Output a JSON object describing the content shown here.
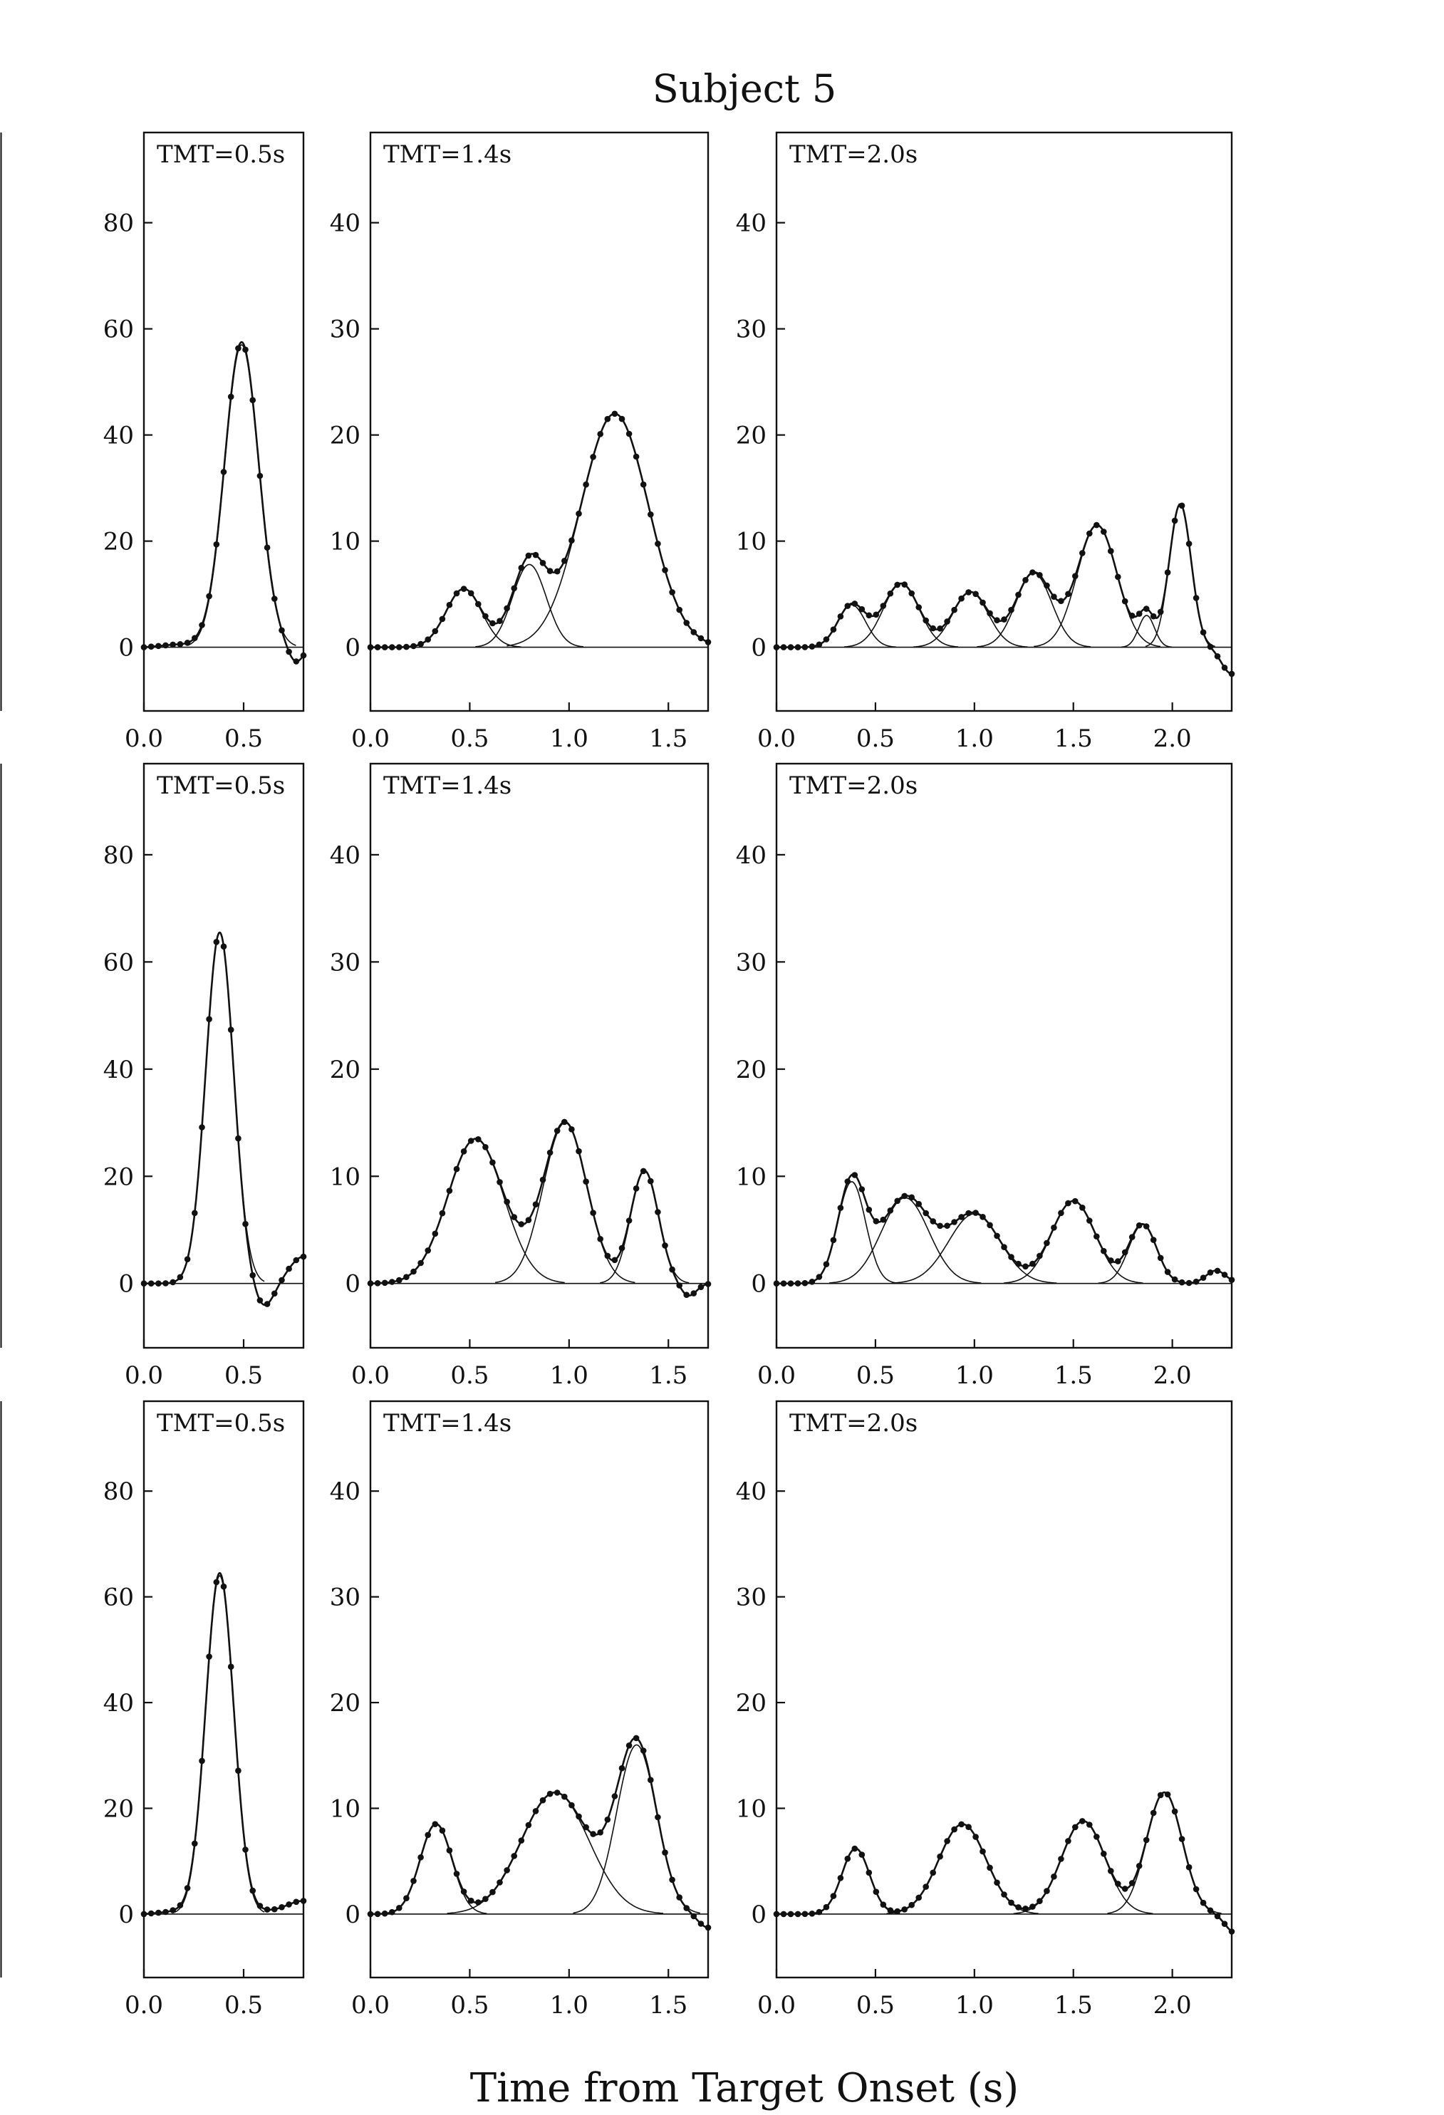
{
  "figure": {
    "title": "Subject 5",
    "xlabel": "Time from Target Onset (s)"
  },
  "chart_data": [
    {
      "type": "line",
      "title": "TMT=0.5s",
      "row": 1,
      "col": 1,
      "xlim": [
        0,
        0.8
      ],
      "ylim": [
        -12,
        97
      ],
      "xticks": [
        0,
        0.5
      ],
      "xtick_labels": [
        "0.0",
        "0.5"
      ],
      "yticks": [
        0,
        20,
        40,
        60,
        80
      ],
      "ytick_labels": [
        "0",
        "20",
        "40",
        "60",
        "80"
      ],
      "baseline_offset": 0.5,
      "components": [
        {
          "center": 0.49,
          "amplitude": 57,
          "width": 0.085
        }
      ],
      "tail": [
        {
          "center": 0.76,
          "amplitude": -3.5,
          "width": 0.04
        }
      ]
    },
    {
      "type": "line",
      "title": "TMT=1.4s",
      "row": 1,
      "col": 2,
      "xlim": [
        0,
        1.7
      ],
      "ylim": [
        -6,
        48.5
      ],
      "xticks": [
        0,
        0.5,
        1,
        1.5
      ],
      "xtick_labels": [
        "0.0",
        "0.5",
        "1.0",
        "1.5"
      ],
      "yticks": [
        0,
        10,
        20,
        30,
        40
      ],
      "ytick_labels": [
        "0",
        "10",
        "20",
        "30",
        "40"
      ],
      "baseline_offset": 0,
      "components": [
        {
          "center": 0.47,
          "amplitude": 5.5,
          "width": 0.09
        },
        {
          "center": 0.8,
          "amplitude": 7.8,
          "width": 0.085
        },
        {
          "center": 1.23,
          "amplitude": 22,
          "width": 0.17
        }
      ],
      "tail": []
    },
    {
      "type": "line",
      "title": "TMT=2.0s",
      "row": 1,
      "col": 3,
      "xlim": [
        0,
        2.3
      ],
      "ylim": [
        -6,
        48.5
      ],
      "xticks": [
        0,
        0.5,
        1,
        1.5,
        2
      ],
      "xtick_labels": [
        "0.0",
        "0.5",
        "1.0",
        "1.5",
        "2.0"
      ],
      "yticks": [
        0,
        10,
        20,
        30,
        40
      ],
      "ytick_labels": [
        "0",
        "10",
        "20",
        "30",
        "40"
      ],
      "baseline_offset": 0,
      "components": [
        {
          "center": 0.38,
          "amplitude": 4,
          "width": 0.07
        },
        {
          "center": 0.63,
          "amplitude": 6,
          "width": 0.09
        },
        {
          "center": 0.98,
          "amplitude": 5.2,
          "width": 0.09
        },
        {
          "center": 1.3,
          "amplitude": 7,
          "width": 0.09
        },
        {
          "center": 1.62,
          "amplitude": 11.5,
          "width": 0.1
        },
        {
          "center": 1.87,
          "amplitude": 3,
          "width": 0.04
        },
        {
          "center": 2.04,
          "amplitude": 13.5,
          "width": 0.055
        }
      ],
      "tail": [
        {
          "center": 2.3,
          "amplitude": -2.5,
          "width": 0.05
        }
      ]
    },
    {
      "type": "line",
      "title": "TMT=0.5s",
      "row": 2,
      "col": 1,
      "xlim": [
        0,
        0.8
      ],
      "ylim": [
        -12,
        97
      ],
      "xticks": [
        0,
        0.5
      ],
      "xtick_labels": [
        "0.0",
        "0.5"
      ],
      "yticks": [
        0,
        20,
        40,
        60,
        80
      ],
      "ytick_labels": [
        "0",
        "20",
        "40",
        "60",
        "80"
      ],
      "baseline_offset": 0,
      "components": [
        {
          "center": 0.38,
          "amplitude": 65.5,
          "width": 0.07
        }
      ],
      "tail": [
        {
          "center": 0.6,
          "amplitude": -4.5,
          "width": 0.05
        },
        {
          "center": 0.8,
          "amplitude": 5,
          "width": 0.07
        }
      ]
    },
    {
      "type": "line",
      "title": "TMT=1.4s",
      "row": 2,
      "col": 2,
      "xlim": [
        0,
        1.7
      ],
      "ylim": [
        -6,
        48.5
      ],
      "xticks": [
        0,
        0.5,
        1,
        1.5
      ],
      "xtick_labels": [
        "0.0",
        "0.5",
        "1.0",
        "1.5"
      ],
      "yticks": [
        0,
        10,
        20,
        30,
        40
      ],
      "ytick_labels": [
        "0",
        "10",
        "20",
        "30",
        "40"
      ],
      "baseline_offset": 0,
      "components": [
        {
          "center": 0.53,
          "amplitude": 13.5,
          "width": 0.14
        },
        {
          "center": 0.98,
          "amplitude": 15,
          "width": 0.11
        },
        {
          "center": 1.38,
          "amplitude": 10.5,
          "width": 0.07
        }
      ],
      "tail": [
        {
          "center": 1.6,
          "amplitude": -1.2,
          "width": 0.04
        }
      ]
    },
    {
      "type": "line",
      "title": "TMT=2.0s",
      "row": 2,
      "col": 3,
      "xlim": [
        0,
        2.3
      ],
      "ylim": [
        -6,
        48.5
      ],
      "xticks": [
        0,
        0.5,
        1,
        1.5,
        2
      ],
      "xtick_labels": [
        "0.0",
        "0.5",
        "1.0",
        "1.5",
        "2.0"
      ],
      "yticks": [
        0,
        10,
        20,
        30,
        40
      ],
      "ytick_labels": [
        "0",
        "10",
        "20",
        "30",
        "40"
      ],
      "baseline_offset": 0,
      "components": [
        {
          "center": 0.38,
          "amplitude": 9.5,
          "width": 0.07
        },
        {
          "center": 0.65,
          "amplitude": 8,
          "width": 0.12
        },
        {
          "center": 1.0,
          "amplitude": 6.5,
          "width": 0.13
        },
        {
          "center": 1.5,
          "amplitude": 7.7,
          "width": 0.11
        },
        {
          "center": 1.85,
          "amplitude": 5.5,
          "width": 0.07
        }
      ],
      "tail": [
        {
          "center": 2.22,
          "amplitude": 1.2,
          "width": 0.05
        }
      ]
    },
    {
      "type": "line",
      "title": "TMT=0.5s",
      "row": 3,
      "col": 1,
      "xlim": [
        0,
        0.8
      ],
      "ylim": [
        -12,
        97
      ],
      "xticks": [
        0,
        0.5
      ],
      "xtick_labels": [
        "0.0",
        "0.5"
      ],
      "yticks": [
        0,
        20,
        40,
        60,
        80
      ],
      "ytick_labels": [
        "0",
        "20",
        "40",
        "60",
        "80"
      ],
      "baseline_offset": 0.5,
      "components": [
        {
          "center": 0.38,
          "amplitude": 64,
          "width": 0.07
        }
      ],
      "tail": [
        {
          "center": 0.8,
          "amplitude": 2,
          "width": 0.08
        }
      ]
    },
    {
      "type": "line",
      "title": "TMT=1.4s",
      "row": 3,
      "col": 2,
      "xlim": [
        0,
        1.7
      ],
      "ylim": [
        -6,
        48.5
      ],
      "xticks": [
        0,
        0.5,
        1,
        1.5
      ],
      "xtick_labels": [
        "0.0",
        "0.5",
        "1.0",
        "1.5"
      ],
      "yticks": [
        0,
        10,
        20,
        30,
        40
      ],
      "ytick_labels": [
        "0",
        "10",
        "20",
        "30",
        "40"
      ],
      "baseline_offset": 0,
      "components": [
        {
          "center": 0.33,
          "amplitude": 8.5,
          "width": 0.08
        },
        {
          "center": 0.93,
          "amplitude": 11.5,
          "width": 0.17
        },
        {
          "center": 1.34,
          "amplitude": 16,
          "width": 0.1
        }
      ],
      "tail": [
        {
          "center": 1.7,
          "amplitude": -1.3,
          "width": 0.05
        }
      ]
    },
    {
      "type": "line",
      "title": "TMT=2.0s",
      "row": 3,
      "col": 3,
      "xlim": [
        0,
        2.3
      ],
      "ylim": [
        -6,
        48.5
      ],
      "xticks": [
        0,
        0.5,
        1,
        1.5,
        2
      ],
      "xtick_labels": [
        "0.0",
        "0.5",
        "1.0",
        "1.5",
        "2.0"
      ],
      "yticks": [
        0,
        10,
        20,
        30,
        40
      ],
      "ytick_labels": [
        "0",
        "10",
        "20",
        "30",
        "40"
      ],
      "baseline_offset": 0,
      "components": [
        {
          "center": 0.4,
          "amplitude": 6.2,
          "width": 0.07
        },
        {
          "center": 0.94,
          "amplitude": 8.5,
          "width": 0.12
        },
        {
          "center": 1.55,
          "amplitude": 8.8,
          "width": 0.11
        },
        {
          "center": 1.96,
          "amplitude": 11.5,
          "width": 0.09
        }
      ],
      "tail": [
        {
          "center": 2.32,
          "amplitude": -1.8,
          "width": 0.05
        }
      ]
    }
  ]
}
